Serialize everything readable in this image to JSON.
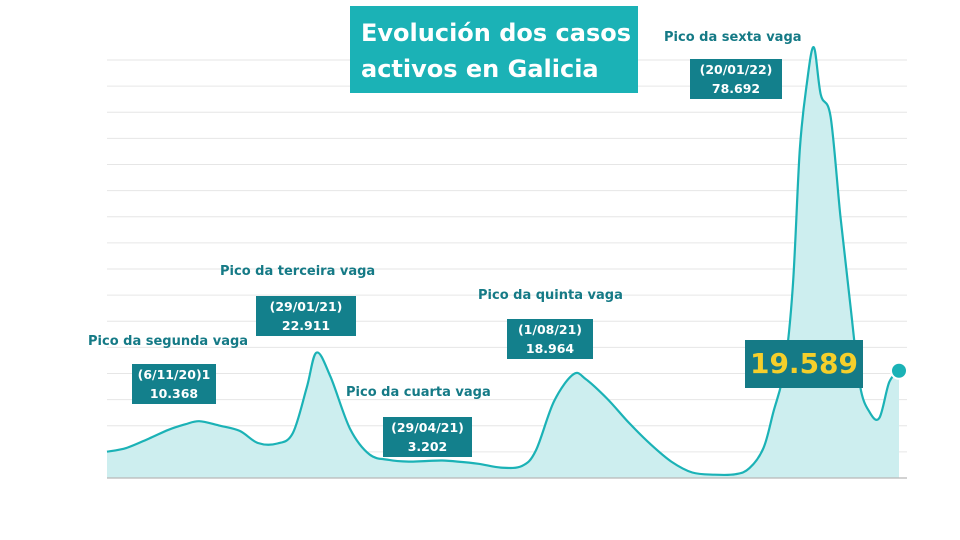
{
  "title_lines": [
    "Evolución dos casos",
    "activos en Galicia"
  ],
  "colors": {
    "line": "#1bb2b6",
    "fill": "#cdeeef",
    "title_bg": "#1bb2b6",
    "label_bg": "#13808c",
    "label_text": "#157a86",
    "highlight": "#f5cf2b",
    "grid": "#e6e6e6"
  },
  "annotations": [
    {
      "title": "Pico da segunda vaga",
      "date": "(6/11/20)1",
      "value": "10.368"
    },
    {
      "title": "Pico da terceira vaga",
      "date": "(29/01/21)",
      "value": "22.911"
    },
    {
      "title": "Pico da cuarta vaga",
      "date": "(29/04/21)",
      "value": "3.202"
    },
    {
      "title": "Pico da quinta vaga",
      "date": "(1/08/21)",
      "value": "18.964"
    },
    {
      "title": "Pico da sexta vaga",
      "date": "(20/01/22)",
      "value": "78.692"
    }
  ],
  "current_value": "19.589",
  "chart_data": {
    "type": "area",
    "title": "Evolución dos casos activos en Galicia",
    "xlabel": "",
    "ylabel": "",
    "x": [
      "2020-09-01",
      "2020-09-15",
      "2020-10-01",
      "2020-10-15",
      "2020-10-27",
      "2020-11-06",
      "2020-11-20",
      "2020-12-05",
      "2020-12-18",
      "2021-01-01",
      "2021-01-12",
      "2021-01-22",
      "2021-01-29",
      "2021-02-08",
      "2021-02-22",
      "2021-03-08",
      "2021-03-22",
      "2021-04-05",
      "2021-04-18",
      "2021-04-29",
      "2021-05-10",
      "2021-05-25",
      "2021-06-10",
      "2021-06-25",
      "2021-07-05",
      "2021-07-18",
      "2021-08-01",
      "2021-08-10",
      "2021-08-25",
      "2021-09-10",
      "2021-09-25",
      "2021-10-10",
      "2021-10-25",
      "2021-11-10",
      "2021-11-25",
      "2021-12-05",
      "2021-12-15",
      "2021-12-22",
      "2021-12-30",
      "2022-01-05",
      "2022-01-10",
      "2022-01-15",
      "2022-01-20",
      "2022-01-25",
      "2022-02-01",
      "2022-02-08",
      "2022-02-15",
      "2022-02-22",
      "2022-03-01",
      "2022-03-08",
      "2022-03-15",
      "2022-03-22"
    ],
    "values": [
      4800,
      5500,
      7200,
      8800,
      9800,
      10368,
      9600,
      8600,
      6400,
      6300,
      8200,
      16500,
      22911,
      18500,
      9000,
      4300,
      3300,
      3000,
      3100,
      3202,
      3000,
      2600,
      1900,
      2200,
      5000,
      14000,
      18964,
      18000,
      14500,
      10000,
      6200,
      3000,
      1000,
      600,
      700,
      1800,
      5500,
      12000,
      20000,
      35000,
      60000,
      72000,
      78692,
      70000,
      66000,
      48000,
      32000,
      17000,
      12000,
      11000,
      17500,
      19589
    ],
    "ylim": [
      0,
      80000
    ],
    "grid": true,
    "legend": "none",
    "annotations": [
      {
        "x": "2020-11-06",
        "y": 10368,
        "label": "Pico da segunda vaga",
        "date": "(6/11/20)1",
        "value": "10.368"
      },
      {
        "x": "2021-01-29",
        "y": 22911,
        "label": "Pico da terceira vaga",
        "date": "(29/01/21)",
        "value": "22.911"
      },
      {
        "x": "2021-04-29",
        "y": 3202,
        "label": "Pico da cuarta vaga",
        "date": "(29/04/21)",
        "value": "3.202"
      },
      {
        "x": "2021-08-01",
        "y": 18964,
        "label": "Pico da quinta vaga",
        "date": "(1/08/21)",
        "value": "18.964"
      },
      {
        "x": "2022-01-20",
        "y": 78692,
        "label": "Pico da sexta vaga",
        "date": "(20/01/22)",
        "value": "78.692"
      }
    ],
    "last_value": "19.589"
  }
}
